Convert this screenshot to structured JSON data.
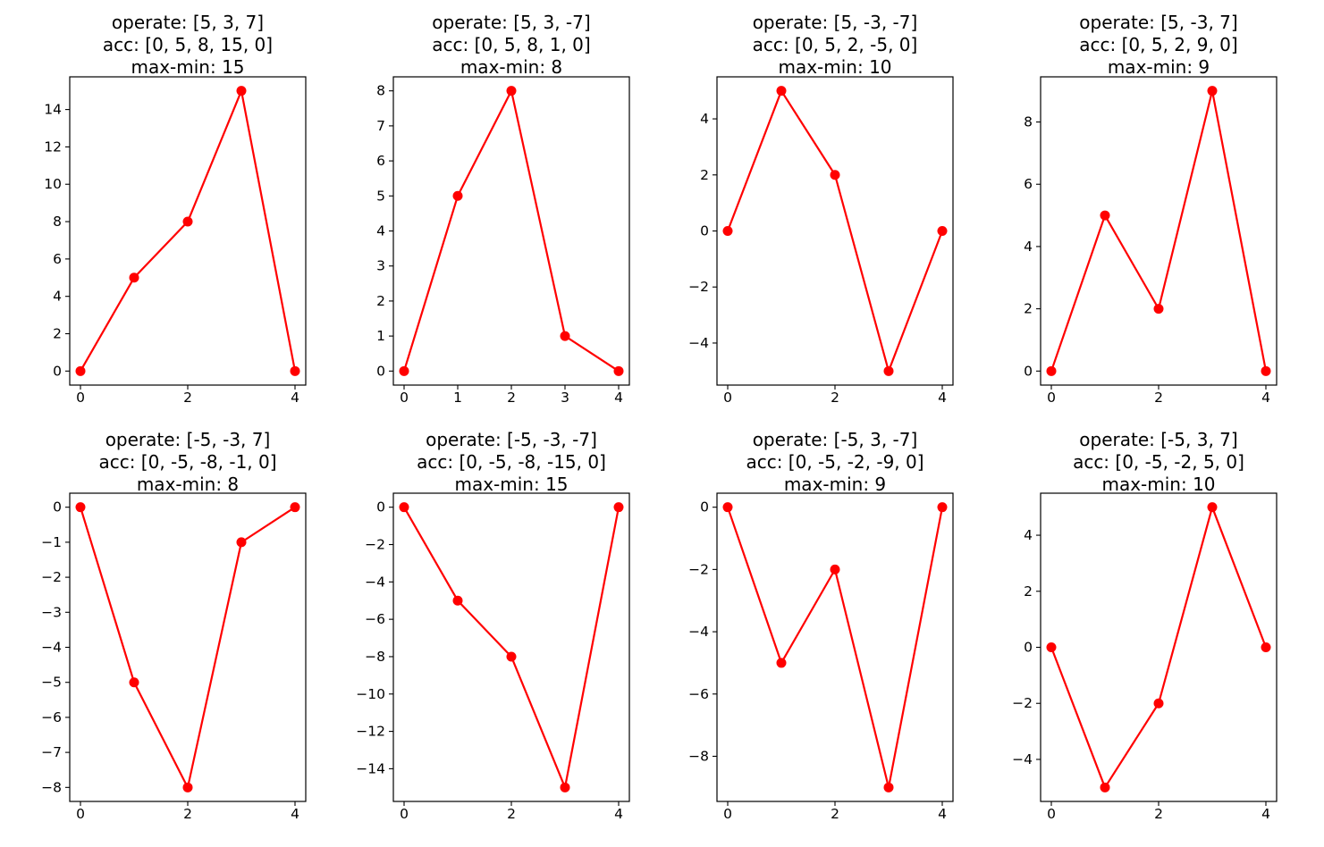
{
  "chart_data": [
    {
      "type": "line",
      "title_lines": [
        "operate: [5, 3, 7]",
        "acc: [0, 5, 8, 15, 0]",
        "max-min: 15"
      ],
      "x": [
        0,
        1,
        2,
        3,
        4
      ],
      "y": [
        0,
        5,
        8,
        15,
        0
      ],
      "xlim": [
        -0.2,
        4.2
      ],
      "ylim": [
        -0.75,
        15.75
      ],
      "xticks": [
        0,
        2,
        4
      ],
      "yticks": [
        0,
        2,
        4,
        6,
        8,
        10,
        12,
        14
      ],
      "color": "#ff0000",
      "marker": "circle"
    },
    {
      "type": "line",
      "title_lines": [
        "operate: [5, 3, -7]",
        "acc: [0, 5, 8, 1, 0]",
        "max-min: 8"
      ],
      "x": [
        0,
        1,
        2,
        3,
        4
      ],
      "y": [
        0,
        5,
        8,
        1,
        0
      ],
      "xlim": [
        -0.2,
        4.2
      ],
      "ylim": [
        -0.4,
        8.4
      ],
      "xticks": [
        0,
        1,
        2,
        3,
        4
      ],
      "yticks": [
        0,
        1,
        2,
        3,
        4,
        5,
        6,
        7,
        8
      ],
      "color": "#ff0000",
      "marker": "circle"
    },
    {
      "type": "line",
      "title_lines": [
        "operate: [5, -3, -7]",
        "acc: [0, 5, 2, -5, 0]",
        "max-min: 10"
      ],
      "x": [
        0,
        1,
        2,
        3,
        4
      ],
      "y": [
        0,
        5,
        2,
        -5,
        0
      ],
      "xlim": [
        -0.2,
        4.2
      ],
      "ylim": [
        -5.5,
        5.5
      ],
      "xticks": [
        0,
        2,
        4
      ],
      "yticks": [
        -4,
        -2,
        0,
        2,
        4
      ],
      "color": "#ff0000",
      "marker": "circle"
    },
    {
      "type": "line",
      "title_lines": [
        "operate: [5, -3, 7]",
        "acc: [0, 5, 2, 9, 0]",
        "max-min: 9"
      ],
      "x": [
        0,
        1,
        2,
        3,
        4
      ],
      "y": [
        0,
        5,
        2,
        9,
        0
      ],
      "xlim": [
        -0.2,
        4.2
      ],
      "ylim": [
        -0.45,
        9.45
      ],
      "xticks": [
        0,
        2,
        4
      ],
      "yticks": [
        0,
        2,
        4,
        6,
        8
      ],
      "color": "#ff0000",
      "marker": "circle"
    },
    {
      "type": "line",
      "title_lines": [
        "operate: [-5, -3, 7]",
        "acc: [0, -5, -8, -1, 0]",
        "max-min: 8"
      ],
      "x": [
        0,
        1,
        2,
        3,
        4
      ],
      "y": [
        0,
        -5,
        -8,
        -1,
        0
      ],
      "xlim": [
        -0.2,
        4.2
      ],
      "ylim": [
        -8.4,
        0.4
      ],
      "xticks": [
        0,
        2,
        4
      ],
      "yticks": [
        -8,
        -7,
        -6,
        -5,
        -4,
        -3,
        -2,
        -1,
        0
      ],
      "color": "#ff0000",
      "marker": "circle"
    },
    {
      "type": "line",
      "title_lines": [
        "operate: [-5, -3, -7]",
        "acc: [0, -5, -8, -15, 0]",
        "max-min: 15"
      ],
      "x": [
        0,
        1,
        2,
        3,
        4
      ],
      "y": [
        0,
        -5,
        -8,
        -15,
        0
      ],
      "xlim": [
        -0.2,
        4.2
      ],
      "ylim": [
        -15.75,
        0.75
      ],
      "xticks": [
        0,
        2,
        4
      ],
      "yticks": [
        -14,
        -12,
        -10,
        -8,
        -6,
        -4,
        -2,
        0
      ],
      "color": "#ff0000",
      "marker": "circle"
    },
    {
      "type": "line",
      "title_lines": [
        "operate: [-5, 3, -7]",
        "acc: [0, -5, -2, -9, 0]",
        "max-min: 9"
      ],
      "x": [
        0,
        1,
        2,
        3,
        4
      ],
      "y": [
        0,
        -5,
        -2,
        -9,
        0
      ],
      "xlim": [
        -0.2,
        4.2
      ],
      "ylim": [
        -9.45,
        0.45
      ],
      "xticks": [
        0,
        2,
        4
      ],
      "yticks": [
        -8,
        -6,
        -4,
        -2,
        0
      ],
      "color": "#ff0000",
      "marker": "circle"
    },
    {
      "type": "line",
      "title_lines": [
        "operate: [-5, 3, 7]",
        "acc: [0, -5, -2, 5, 0]",
        "max-min: 10"
      ],
      "x": [
        0,
        1,
        2,
        3,
        4
      ],
      "y": [
        0,
        -5,
        -2,
        5,
        0
      ],
      "xlim": [
        -0.2,
        4.2
      ],
      "ylim": [
        -5.5,
        5.5
      ],
      "xticks": [
        0,
        2,
        4
      ],
      "yticks": [
        -4,
        -2,
        0,
        2,
        4
      ],
      "color": "#ff0000",
      "marker": "circle"
    }
  ]
}
